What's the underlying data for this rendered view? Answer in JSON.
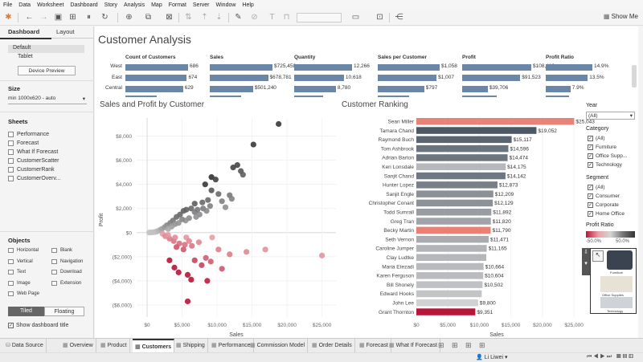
{
  "menu": [
    "File",
    "Data",
    "Worksheet",
    "Dashboard",
    "Story",
    "Analysis",
    "Map",
    "Format",
    "Server",
    "Window",
    "Help"
  ],
  "toolbar": {
    "show_me": "Show Me"
  },
  "left_pane": {
    "tabs": [
      "Dashboard",
      "Layout"
    ],
    "device_list": [
      "Default",
      "Tablet"
    ],
    "device_preview": "Device Preview",
    "size_title": "Size",
    "size_value": "min 1000x620 - auto",
    "sheets_title": "Sheets",
    "sheets": [
      "Performance",
      "Forecast",
      "What If Forecast",
      "CustomerScatter",
      "CustomerRank",
      "CustomerOverv..."
    ],
    "objects_title": "Objects",
    "objects": [
      "Horizontal",
      "Blank",
      "Vertical",
      "Navigation",
      "Text",
      "Download",
      "Image",
      "Extension",
      "Web Page"
    ],
    "tiled": "Tiled",
    "floating": "Floating",
    "show_title": "Show dashboard title"
  },
  "dashboard": {
    "title": "Customer Analysis",
    "kpi": {
      "columns": [
        "Count of Customers",
        "Sales",
        "Quantity",
        "Sales per Customer",
        "Profit",
        "Profit Ratio"
      ],
      "rows": [
        "West",
        "East",
        "Central"
      ],
      "values": [
        [
          "686",
          "$725,458",
          "12,266",
          "$1,058",
          "$108,418",
          "14.9%"
        ],
        [
          "674",
          "$678,781",
          "10,618",
          "$1,007",
          "$91,523",
          "13.5%"
        ],
        [
          "629",
          "$501,240",
          "8,780",
          "$797",
          "$39,706",
          "7.9%"
        ]
      ],
      "fractions": [
        [
          1.0,
          1.0,
          1.0,
          1.0,
          1.0,
          1.0
        ],
        [
          0.98,
          0.93,
          0.86,
          0.95,
          0.84,
          0.9
        ],
        [
          0.92,
          0.69,
          0.72,
          0.75,
          0.37,
          0.53
        ]
      ]
    },
    "scatter": {
      "title": "Sales and Profit by Customer",
      "xlabel": "Sales",
      "ylabel": "Profit"
    },
    "ranking": {
      "title": "Customer Ranking",
      "xlabel": "Sales"
    }
  },
  "chart_data": [
    {
      "type": "scatter",
      "title": "Sales and Profit by Customer",
      "xlabel": "Sales",
      "ylabel": "Profit",
      "xlim": [
        -1500,
        27000
      ],
      "ylim": [
        -7000,
        9500
      ],
      "xticks": [
        "$0",
        "$5,000",
        "$10,000",
        "$15,000",
        "$20,000",
        "$25,000"
      ],
      "xtick_values": [
        0,
        5000,
        10000,
        15000,
        20000,
        25000
      ],
      "yticks": [
        "$8,000",
        "$6,000",
        "$4,000",
        "$2,000",
        "$0",
        "($2,000)",
        "($4,000)",
        "($6,000)"
      ],
      "ytick_values": [
        8000,
        6000,
        4000,
        2000,
        0,
        -2000,
        -4000,
        -6000
      ],
      "points": [
        [
          18800,
          9000
        ],
        [
          15200,
          7300
        ],
        [
          12900,
          5600
        ],
        [
          12300,
          5400
        ],
        [
          13400,
          5100
        ],
        [
          13700,
          4800
        ],
        [
          9200,
          4600
        ],
        [
          9800,
          4400
        ],
        [
          8300,
          4000
        ],
        [
          9200,
          3500
        ],
        [
          10200,
          3200
        ],
        [
          11800,
          3100
        ],
        [
          12100,
          2800
        ],
        [
          8700,
          2700
        ],
        [
          10700,
          2600
        ],
        [
          7900,
          2500
        ],
        [
          11200,
          2100
        ],
        [
          6800,
          2400
        ],
        [
          6300,
          2000
        ],
        [
          5600,
          1900
        ],
        [
          5200,
          1800
        ],
        [
          4700,
          1500
        ],
        [
          4200,
          1300
        ],
        [
          3700,
          1000
        ],
        [
          3300,
          800
        ],
        [
          2800,
          600
        ],
        [
          2500,
          450
        ],
        [
          2100,
          300
        ],
        [
          1800,
          200
        ],
        [
          1400,
          100
        ],
        [
          1100,
          50
        ],
        [
          800,
          20
        ],
        [
          500,
          10
        ],
        [
          300,
          5
        ],
        [
          6800,
          1700
        ],
        [
          7500,
          1500
        ],
        [
          7200,
          1900
        ],
        [
          6000,
          1200
        ],
        [
          5500,
          1000
        ],
        [
          4500,
          800
        ],
        [
          4000,
          700
        ],
        [
          3500,
          500
        ],
        [
          3000,
          300
        ],
        [
          8000,
          2000
        ],
        [
          9000,
          2200
        ],
        [
          8500,
          1800
        ],
        [
          7000,
          1300
        ],
        [
          5000,
          1100
        ],
        [
          2200,
          -100
        ],
        [
          2600,
          -300
        ],
        [
          3200,
          -500
        ],
        [
          3800,
          -700
        ],
        [
          4600,
          -900
        ],
        [
          5400,
          -1000
        ],
        [
          4000,
          -400
        ],
        [
          3000,
          -200
        ],
        [
          5600,
          -400
        ],
        [
          6000,
          -700
        ],
        [
          6400,
          -1100
        ],
        [
          7400,
          -800
        ],
        [
          5200,
          -1400
        ],
        [
          4200,
          -1200
        ],
        [
          9300,
          -400
        ],
        [
          10200,
          -1400
        ],
        [
          11800,
          -1800
        ],
        [
          14200,
          -1600
        ],
        [
          16900,
          -1400
        ],
        [
          25000,
          -1900
        ],
        [
          3200,
          -2300
        ],
        [
          3900,
          -2900
        ],
        [
          4500,
          -3300
        ],
        [
          5800,
          -3500
        ],
        [
          6300,
          -3900
        ],
        [
          8600,
          -4000
        ],
        [
          5800,
          -5700
        ],
        [
          8400,
          -2100
        ],
        [
          9100,
          -2400
        ],
        [
          7800,
          -2700
        ],
        [
          6800,
          -2300
        ],
        [
          10700,
          -3000
        ]
      ]
    },
    {
      "type": "bar",
      "title": "Customer Ranking",
      "xlabel": "Sales",
      "xticks": [
        "$0",
        "$5,000",
        "$10,000",
        "$15,000",
        "$20,000",
        "$25,000"
      ],
      "xtick_values": [
        0,
        5000,
        10000,
        15000,
        20000,
        25000
      ],
      "xlim": [
        0,
        25500
      ],
      "categories": [
        "Sean Miller",
        "Tamara Chand",
        "Raymond Buch",
        "Tom Ashbrook",
        "Adrian Barton",
        "Ken Lonsdale",
        "Sanjit Chand",
        "Hunter Lopez",
        "Sanjit Engle",
        "Christopher Conant",
        "Todd Sumrall",
        "Greg Tran",
        "Becky Martin",
        "Seth Vernon",
        "Caroline Jumper",
        "Clay Ludtke",
        "Maria Etezadi",
        "Karen Ferguson",
        "Bill Shonely",
        "Edward Hooks",
        "John Lee",
        "Grant Thornton"
      ],
      "values": [
        25043,
        19052,
        15117,
        14596,
        14474,
        14175,
        14142,
        12873,
        12209,
        12129,
        11892,
        11820,
        11790,
        11471,
        11165,
        11100,
        10664,
        10604,
        10502,
        10372,
        9800,
        9351
      ],
      "labels": [
        "$25,043",
        "$19,052",
        "$15,117",
        "$14,596",
        "$14,474",
        "$14,175",
        "$14,142",
        "$12,873",
        "$12,209",
        "$12,129",
        "$11,892",
        "$11,820",
        "$11,790",
        "$11,471",
        "$11,165",
        "",
        "$10,664",
        "$10,604",
        "$10,502",
        "",
        "$9,800",
        "$9,351"
      ],
      "colors": [
        "#e8837a",
        "#4d5866",
        "#5b6571",
        "#6a737e",
        "#6d7580",
        "#b5b8bc",
        "#6f7782",
        "#7a8089",
        "#8c9097",
        "#8d9198",
        "#999ca1",
        "#a0a3a8",
        "#ec7f72",
        "#a9abb0",
        "#b2b4b8",
        "#b5b7ba",
        "#b8babd",
        "#b9bbbe",
        "#bfc1c4",
        "#c2c4c6",
        "#d0d1d3",
        "#b8153a"
      ]
    }
  ],
  "filters": {
    "year_title": "Year",
    "year_value": "(All)",
    "category_title": "Category",
    "category_items": [
      "(All)",
      "Furniture",
      "Office Supp...",
      "Technology"
    ],
    "segment_title": "Segment",
    "segment_items": [
      "(All)",
      "Consumer",
      "Corporate",
      "Home Office"
    ],
    "profit_ratio_title": "Profit Ratio",
    "profit_ratio_min": "-50.0%",
    "profit_ratio_max": "50.0%",
    "legend_labels": [
      "Furniture",
      "Office Supplies",
      "Technology"
    ]
  },
  "bottom_tabs": [
    "Data Source",
    "Overview",
    "Product",
    "Customers",
    "Shipping",
    "Performance",
    "Commission Model",
    "Order Details",
    "Forecast",
    "What If Forecast"
  ],
  "status": {
    "user": "Li Liwei"
  },
  "colors": {
    "kpi_bar": "#6b87a8",
    "negative": "#c0153a",
    "positive": "#454545"
  }
}
